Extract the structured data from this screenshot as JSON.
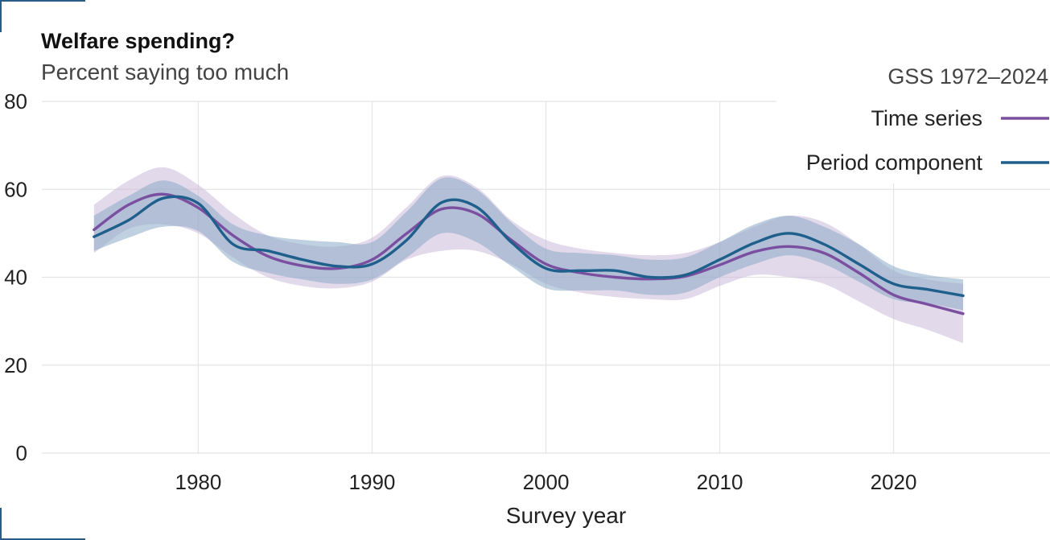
{
  "chart_data": {
    "type": "line",
    "title": "Welfare spending?",
    "subtitle": "Percent saying too much",
    "xlabel": "Survey year",
    "ylabel": "",
    "xlim": [
      1971,
      2029
    ],
    "ylim": [
      0,
      80
    ],
    "x_ticks": [
      1980,
      1990,
      2000,
      2010,
      2020
    ],
    "y_ticks": [
      0,
      20,
      40,
      60,
      80
    ],
    "grid": true,
    "legend_title": "GSS 1972–2024",
    "legend_position": "top-right",
    "x": [
      1974,
      1976,
      1978,
      1980,
      1982,
      1984,
      1986,
      1988,
      1990,
      1992,
      1994,
      1996,
      1998,
      2000,
      2002,
      2004,
      2006,
      2008,
      2010,
      2012,
      2014,
      2016,
      2018,
      2020,
      2022,
      2024
    ],
    "series": [
      {
        "name": "Time series",
        "color": "#7b4fa0",
        "band_color": "#cbb9da",
        "values": [
          50.8,
          56.5,
          58.9,
          55.8,
          49.5,
          44.8,
          42.6,
          42.0,
          44.0,
          50.0,
          55.5,
          54.5,
          48.5,
          43.0,
          41.0,
          40.0,
          39.6,
          40.2,
          42.8,
          45.8,
          47.0,
          45.5,
          41.0,
          36.0,
          33.8,
          31.7
        ],
        "lower": [
          45.5,
          51.0,
          52.0,
          50.0,
          44.5,
          40.0,
          38.0,
          37.5,
          39.0,
          44.0,
          46.0,
          46.0,
          43.0,
          38.5,
          36.5,
          35.5,
          35.0,
          35.0,
          38.0,
          40.5,
          40.0,
          38.5,
          34.5,
          30.5,
          28.0,
          25.0
        ],
        "upper": [
          56.5,
          62.0,
          65.0,
          61.0,
          54.5,
          49.5,
          47.5,
          47.0,
          49.0,
          56.0,
          63.0,
          60.5,
          53.0,
          48.5,
          46.5,
          45.5,
          45.0,
          45.5,
          48.0,
          51.5,
          54.0,
          52.5,
          47.5,
          41.5,
          39.5,
          38.5
        ]
      },
      {
        "name": "Period component",
        "color": "#1f5f8b",
        "band_color": "#8aa9c6",
        "values": [
          49.2,
          53.0,
          58.0,
          56.8,
          47.5,
          46.0,
          44.0,
          42.5,
          43.0,
          48.5,
          57.0,
          56.0,
          48.0,
          42.0,
          41.5,
          41.5,
          40.0,
          40.5,
          44.0,
          47.8,
          50.0,
          47.5,
          43.0,
          38.5,
          37.2,
          35.8
        ],
        "lower": [
          46.0,
          49.0,
          51.5,
          50.5,
          43.5,
          41.0,
          39.5,
          38.5,
          39.5,
          44.5,
          50.0,
          48.0,
          42.5,
          37.5,
          37.0,
          37.0,
          36.0,
          36.5,
          40.0,
          43.0,
          45.0,
          43.0,
          39.0,
          35.0,
          34.0,
          32.5
        ],
        "upper": [
          54.0,
          58.5,
          62.0,
          58.5,
          52.0,
          49.5,
          48.5,
          48.0,
          48.0,
          55.0,
          62.5,
          60.0,
          52.5,
          46.5,
          45.5,
          45.0,
          44.0,
          44.5,
          48.0,
          52.0,
          54.0,
          51.5,
          47.5,
          42.5,
          40.5,
          39.5
        ]
      }
    ]
  }
}
